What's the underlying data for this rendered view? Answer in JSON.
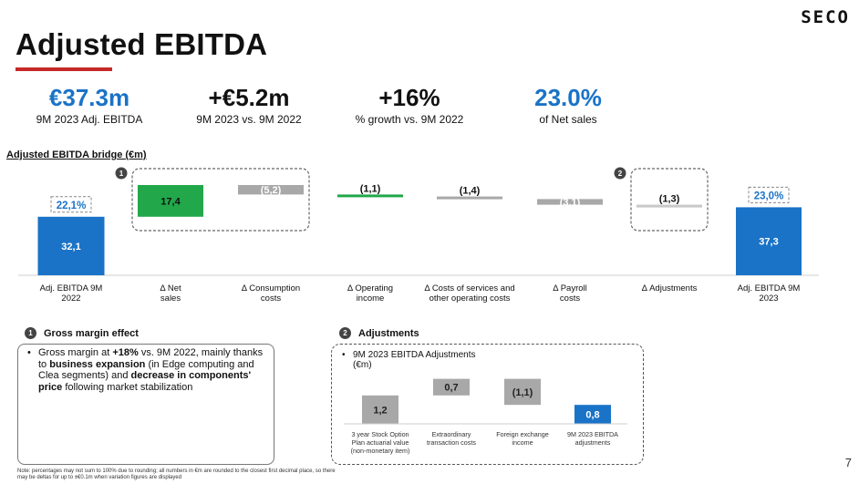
{
  "header": {
    "title": "Adjusted EBITDA",
    "logo_text": "SECO",
    "accent_color": "#c62828"
  },
  "kpis": [
    {
      "value": "€37.3m",
      "label": "9M 2023 Adj. EBITDA",
      "color": "#1a73c7"
    },
    {
      "value": "+€5.2m",
      "label": "9M 2023 vs. 9M 2022",
      "color": "#111111"
    },
    {
      "value": "+16%",
      "label": "% growth vs. 9M 2022",
      "color": "#111111"
    },
    {
      "value": "23.0%",
      "label": "of Net sales",
      "color": "#1a73c7"
    }
  ],
  "chart_data": [
    {
      "type": "bar",
      "subtype": "waterfall",
      "title": "Adjusted EBITDA bridge (€m)",
      "categories": [
        "Adj. EBITDA 9M 2022",
        "Δ Net sales",
        "Δ Consumption costs",
        "Δ Operating income",
        "Δ Costs of services and other operating costs",
        "Δ Payroll costs",
        "Δ Adjustments",
        "Adj. EBITDA 9M 2023"
      ],
      "values": [
        32.1,
        17.4,
        -5.2,
        -1.1,
        -1.4,
        -3.1,
        -1.3,
        37.3
      ],
      "value_labels": [
        "32,1",
        "17,4",
        "(5,2)",
        "(1,1)",
        "(1,4)",
        "(3,1)",
        "(1,3)",
        "37,3"
      ],
      "bar_kinds": [
        "total",
        "delta",
        "delta",
        "delta",
        "delta",
        "delta",
        "delta",
        "total"
      ],
      "bar_colors": [
        "#1a73c7",
        "#22a84a",
        "#a8a8a8",
        "#22a84a",
        "#a8a8a8",
        "#a8a8a8",
        "#c8c8c8",
        "#1a73c7"
      ],
      "margin_labels": [
        {
          "index": 0,
          "text": "22,1%"
        },
        {
          "index": 7,
          "text": "23,0%"
        }
      ],
      "callouts": [
        {
          "number": "1",
          "from": 1,
          "to": 2
        },
        {
          "number": "2",
          "from": 6,
          "to": 6
        }
      ],
      "ylim": [
        0,
        60
      ]
    },
    {
      "type": "bar",
      "subtype": "waterfall",
      "title": "9M 2023 EBITDA Adjustments (€m)",
      "categories": [
        "3 year Stock Option Plan actuarial value (non-monetary item)",
        "Extraordinary transaction costs",
        "Foreign exchange income",
        "9M 2023 EBITDA adjustments"
      ],
      "values": [
        1.2,
        0.7,
        -1.1,
        0.8
      ],
      "value_labels": [
        "1,2",
        "0,7",
        "(1,1)",
        "0,8"
      ],
      "bar_kinds": [
        "delta",
        "delta",
        "delta",
        "total"
      ],
      "bar_colors": [
        "#a8a8a8",
        "#a8a8a8",
        "#a8a8a8",
        "#1a73c7"
      ],
      "ylim": [
        0,
        2.2
      ]
    }
  ],
  "bridge_section": {
    "title": "Adjusted EBITDA bridge (€m)",
    "category_lines": [
      [
        "Adj. EBITDA 9M",
        "2022"
      ],
      [
        "Δ Net",
        "sales"
      ],
      [
        "Δ Consumption",
        "costs"
      ],
      [
        "Δ Operating",
        "income"
      ],
      [
        "Δ Costs of services and",
        "other operating costs"
      ],
      [
        "Δ Payroll",
        "costs"
      ],
      [
        "Δ Adjustments"
      ],
      [
        "Adj. EBITDA 9M",
        "2023"
      ]
    ]
  },
  "gross_margin": {
    "number": "1",
    "title": "Gross margin effect",
    "bullet": "•",
    "parts": [
      {
        "text": "Gross margin at ",
        "bold": false
      },
      {
        "text": "+18%",
        "bold": true
      },
      {
        "text": " vs. 9M 2022, mainly thanks to ",
        "bold": false
      },
      {
        "text": "business expansion",
        "bold": true
      },
      {
        "text": " (in Edge computing and Clea segments) and ",
        "bold": false
      },
      {
        "text": "decrease in components' price",
        "bold": true
      },
      {
        "text": " following market stabilization",
        "bold": false
      }
    ]
  },
  "adjustments": {
    "number": "2",
    "title": "Adjustments",
    "bullet": "•",
    "chart_title_lines": [
      "9M 2023 EBITDA Adjustments",
      "(€m)"
    ],
    "category_lines": [
      [
        "3 year Stock Option",
        "Plan actuarial value",
        "(non-monetary item)"
      ],
      [
        "Extraordinary",
        "transaction costs"
      ],
      [
        "Foreign exchange",
        "income"
      ],
      [
        "9M 2023 EBITDA",
        "adjustments"
      ]
    ]
  },
  "footnote": "Note: percentages may not sum to 100% due to rounding; all numbers in €m are rounded to the closest first decimal place, so there may be deltas for up to ±€0.1m when variation figures are displayed",
  "page_number": "7"
}
